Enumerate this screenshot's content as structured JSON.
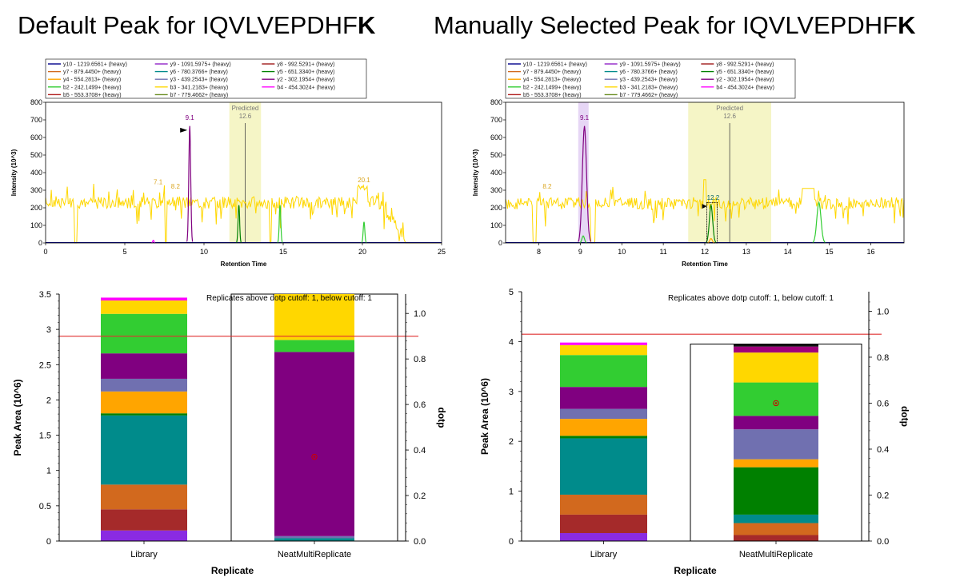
{
  "titles": {
    "left": {
      "main": "Default Peak for IQVLVEPDHF",
      "bold": "K"
    },
    "right": {
      "main": "Manually Selected Peak for IQVLVEPDHF",
      "bold": "K"
    }
  },
  "legend": [
    {
      "label": "y10 - 1219.6561+ (heavy)",
      "color": "#00008b"
    },
    {
      "label": "y9 - 1091.5975+ (heavy)",
      "color": "#9932cc"
    },
    {
      "label": "y8 - 992.5291+ (heavy)",
      "color": "#a52a2a"
    },
    {
      "label": "y7 - 879.4450+ (heavy)",
      "color": "#d2691e"
    },
    {
      "label": "y6 - 780.3766+ (heavy)",
      "color": "#008b8b"
    },
    {
      "label": "y5 - 651.3340+ (heavy)",
      "color": "#008000"
    },
    {
      "label": "y4 - 554.2813+ (heavy)",
      "color": "#ffa500"
    },
    {
      "label": "y3 - 439.2543+ (heavy)",
      "color": "#7070b0"
    },
    {
      "label": "y2 - 302.1954+ (heavy)",
      "color": "#800080"
    },
    {
      "label": "b2 - 242.1499+ (heavy)",
      "color": "#32cd32"
    },
    {
      "label": "b3 - 341.2183+ (heavy)",
      "color": "#ffd700"
    },
    {
      "label": "b4 - 454.3024+ (heavy)",
      "color": "#ff00ff"
    },
    {
      "label": "b5 - 553.3708+ (heavy)",
      "color": "#b22222"
    },
    {
      "label": "b7 - 779.4662+ (heavy)",
      "color": "#6b8e23"
    }
  ],
  "chart_data": [
    {
      "id": "chrom-default",
      "type": "line",
      "title": "",
      "xlabel": "Retention Time",
      "ylabel": "Intensity (10^3)",
      "xlim": [
        0,
        25
      ],
      "ylim": [
        0,
        800
      ],
      "xticks": [
        "0",
        "5",
        "10",
        "15",
        "20",
        "25"
      ],
      "yticks": [
        "0",
        "100",
        "200",
        "300",
        "400",
        "500",
        "600",
        "700",
        "800"
      ],
      "predicted": {
        "label": "Predicted",
        "rt": "12.6",
        "window": [
          11.6,
          13.6
        ]
      },
      "baseline": 230,
      "peaks": [
        {
          "series": "y2",
          "color": "#800080",
          "rt": 9.1,
          "height": 665,
          "width": 0.06
        },
        {
          "series": "y5",
          "color": "#008000",
          "rt": 12.2,
          "height": 215,
          "width": 0.05
        },
        {
          "series": "b2",
          "color": "#32cd32",
          "rt": 14.8,
          "height": 215,
          "width": 0.05
        },
        {
          "series": "b2",
          "color": "#32cd32",
          "rt": 20.1,
          "height": 120,
          "width": 0.05
        },
        {
          "series": "b4",
          "color": "#ff00ff",
          "rt": 6.8,
          "height": 15,
          "width": 0.04
        }
      ],
      "peak_labels": [
        {
          "text": "9.1",
          "rt": 9.1,
          "y": 700,
          "color": "#800080"
        },
        {
          "text": "7.1",
          "rt": 7.1,
          "y": 335,
          "color": "#daa520"
        },
        {
          "text": "8.2",
          "rt": 8.2,
          "y": 310,
          "color": "#daa520"
        },
        {
          "text": "20.1",
          "rt": 20.1,
          "y": 345,
          "color": "#daa520"
        }
      ]
    },
    {
      "id": "chrom-manual",
      "type": "line",
      "title": "",
      "xlabel": "Retention Time",
      "ylabel": "Intensity (10^3)",
      "xlim": [
        7.2,
        16.8
      ],
      "ylim": [
        0,
        800
      ],
      "xticks": [
        "8",
        "9",
        "10",
        "11",
        "12",
        "13",
        "14",
        "15",
        "16"
      ],
      "yticks": [
        "0",
        "100",
        "200",
        "300",
        "400",
        "500",
        "600",
        "700",
        "800"
      ],
      "predicted": {
        "label": "Predicted",
        "rt": "12.6",
        "window": [
          11.6,
          13.6
        ]
      },
      "selected": {
        "label": "12.2",
        "window": [
          12.05,
          12.3
        ]
      },
      "highlight": {
        "window": [
          8.95,
          9.2
        ]
      },
      "baseline": 225,
      "peaks": [
        {
          "series": "y2",
          "color": "#800080",
          "rt": 9.1,
          "height": 665,
          "width": 0.05
        },
        {
          "series": "b2",
          "color": "#32cd32",
          "rt": 9.07,
          "height": 40,
          "width": 0.03
        },
        {
          "series": "y5",
          "color": "#008000",
          "rt": 12.15,
          "height": 215,
          "width": 0.04
        },
        {
          "series": "y4",
          "color": "#ffa500",
          "rt": 12.15,
          "height": 25,
          "width": 0.03
        },
        {
          "series": "b2",
          "color": "#32cd32",
          "rt": 14.75,
          "height": 230,
          "width": 0.05
        }
      ],
      "peak_labels": [
        {
          "text": "9.1",
          "rt": 9.1,
          "y": 700,
          "color": "#800080"
        },
        {
          "text": "8.2",
          "rt": 8.2,
          "y": 310,
          "color": "#daa520"
        },
        {
          "text": "12.2",
          "rt": 12.2,
          "y": 245,
          "color": "#006060"
        }
      ]
    },
    {
      "id": "area-default",
      "type": "bar",
      "stacked": true,
      "xlabel": "Replicate",
      "ylabel": "Peak Area (10^6)",
      "y2label": "dotp",
      "ylim": [
        0,
        3.5
      ],
      "y2lim": [
        0,
        1.085
      ],
      "yticks": [
        "0",
        "0.5",
        "1",
        "1.5",
        "2",
        "2.5",
        "3",
        "3.5"
      ],
      "y2ticks": [
        "0.0",
        "0.2",
        "0.4",
        "0.6",
        "0.8",
        "1.0"
      ],
      "note": "Replicates above dotp cutoff: 1, below cutoff: 1",
      "cutoff": 0.9,
      "categories": [
        "Library",
        "NeatMultiReplicate"
      ],
      "bars": [
        {
          "category": "Library",
          "segments": [
            {
              "color": "#8a2be2",
              "value": 0.15
            },
            {
              "color": "#a52a2a",
              "value": 0.3
            },
            {
              "color": "#d2691e",
              "value": 0.35
            },
            {
              "color": "#008b8b",
              "value": 0.98
            },
            {
              "color": "#008000",
              "value": 0.03
            },
            {
              "color": "#ffa500",
              "value": 0.31
            },
            {
              "color": "#7070b0",
              "value": 0.18
            },
            {
              "color": "#800080",
              "value": 0.36
            },
            {
              "color": "#32cd32",
              "value": 0.56
            },
            {
              "color": "#ffd700",
              "value": 0.19
            },
            {
              "color": "#ff00ff",
              "value": 0.04
            }
          ]
        },
        {
          "category": "NeatMultiReplicate",
          "dotp": 0.37,
          "segments": [
            {
              "color": "#008b8b",
              "value": 0.04
            },
            {
              "color": "#7070b0",
              "value": 0.03
            },
            {
              "color": "#800080",
              "value": 2.61
            },
            {
              "color": "#32cd32",
              "value": 0.17
            },
            {
              "color": "#ffd700",
              "value": 0.65
            }
          ]
        }
      ]
    },
    {
      "id": "area-manual",
      "type": "bar",
      "stacked": true,
      "xlabel": "Replicate",
      "ylabel": "Peak Area (10^6)",
      "y2label": "dotp",
      "ylim": [
        0,
        5
      ],
      "y2lim": [
        0,
        1.085
      ],
      "yticks": [
        "0",
        "1",
        "2",
        "3",
        "4",
        "5"
      ],
      "y2ticks": [
        "0.0",
        "0.2",
        "0.4",
        "0.6",
        "0.8",
        "1.0"
      ],
      "note": "Replicates above dotp cutoff: 1, below cutoff: 1",
      "cutoff": 0.9,
      "categories": [
        "Library",
        "NeatMultiReplicate"
      ],
      "bars": [
        {
          "category": "Library",
          "segments": [
            {
              "color": "#8a2be2",
              "value": 0.16
            },
            {
              "color": "#a52a2a",
              "value": 0.37
            },
            {
              "color": "#d2691e",
              "value": 0.4
            },
            {
              "color": "#008b8b",
              "value": 1.13
            },
            {
              "color": "#008000",
              "value": 0.05
            },
            {
              "color": "#ffa500",
              "value": 0.34
            },
            {
              "color": "#7070b0",
              "value": 0.2
            },
            {
              "color": "#800080",
              "value": 0.44
            },
            {
              "color": "#32cd32",
              "value": 0.64
            },
            {
              "color": "#ffd700",
              "value": 0.2
            },
            {
              "color": "#ff00ff",
              "value": 0.05
            }
          ]
        },
        {
          "category": "NeatMultiReplicate",
          "dotp": 0.6,
          "segments": [
            {
              "color": "#a52a2a",
              "value": 0.12
            },
            {
              "color": "#d2691e",
              "value": 0.24
            },
            {
              "color": "#008b8b",
              "value": 0.17
            },
            {
              "color": "#008000",
              "value": 0.95
            },
            {
              "color": "#ffa500",
              "value": 0.16
            },
            {
              "color": "#7070b0",
              "value": 0.6
            },
            {
              "color": "#800080",
              "value": 0.27
            },
            {
              "color": "#32cd32",
              "value": 0.67
            },
            {
              "color": "#ffd700",
              "value": 0.6
            },
            {
              "color": "#a0007a",
              "value": 0.12
            },
            {
              "color": "#111111",
              "value": 0.05
            }
          ]
        }
      ]
    }
  ]
}
